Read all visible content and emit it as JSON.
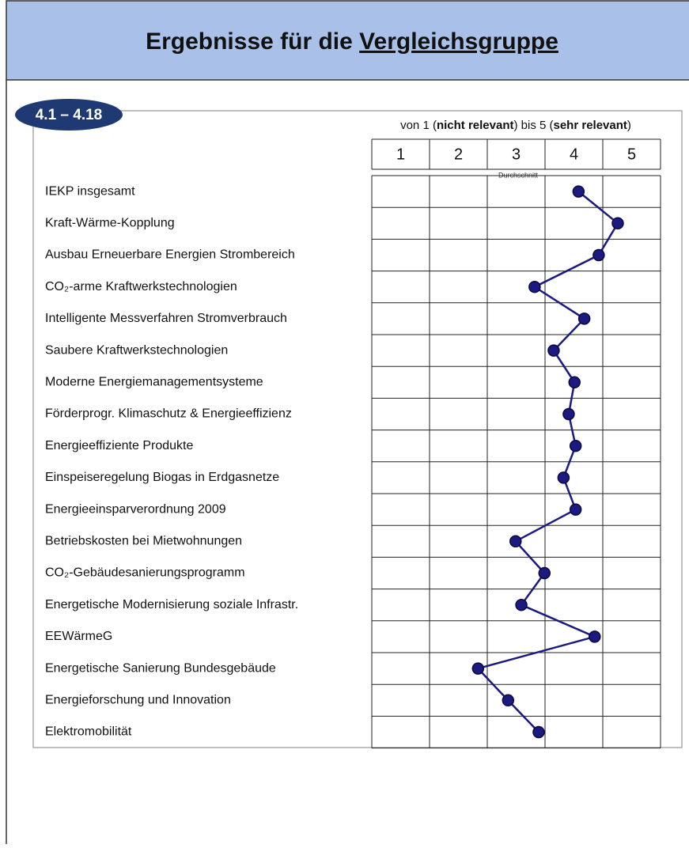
{
  "badge": "4.1 – 4.18",
  "chart_data": {
    "type": "line",
    "title": "Ergebnisse für die",
    "title_underlined": "Vergleichsgruppe",
    "subtitle": [
      "von 1 (",
      "nicht relevant",
      ") bis 5 (",
      "sehr relevant",
      ")"
    ],
    "annotation": "Durchschnitt",
    "categories": [
      "IEKP insgesamt",
      "Kraft-Wärme-Kopplung",
      "Ausbau Erneuerbare Energien Strombereich",
      "CO₂-arme Kraftwerkstechnologien",
      "Intelligente Messverfahren Stromverbrauch",
      "Saubere Kraftwerkstechnologien",
      "Moderne Energiemanagementsysteme",
      "Förderprogr. Klimaschutz & Energieeffizienz",
      "Energieeffiziente Produkte",
      "Einspeiseregelung Biogas in Erdgasnetze",
      "Energieeinsparverordnung 2009",
      "Betriebskosten bei Mietwohnungen",
      "CO₂-Gebäudesanierungsprogramm",
      "Energetische Modernisierung soziale Infrastr.",
      "EEWärmeG",
      "Energetische Sanierung Bundesgebäude",
      "Energieforschung und Innovation",
      "Elektromobilität"
    ],
    "series": [
      {
        "name": "Durchschnitt",
        "color": "#1a1a80",
        "values": [
          4.08,
          4.76,
          4.43,
          3.32,
          4.18,
          3.65,
          4.01,
          3.91,
          4.03,
          3.82,
          4.03,
          2.99,
          3.49,
          3.09,
          4.36,
          2.34,
          2.86,
          3.39
        ]
      }
    ],
    "xlim": [
      0.5,
      5.5
    ],
    "xticks": [
      1,
      2,
      3,
      4,
      5
    ],
    "grid": true
  }
}
